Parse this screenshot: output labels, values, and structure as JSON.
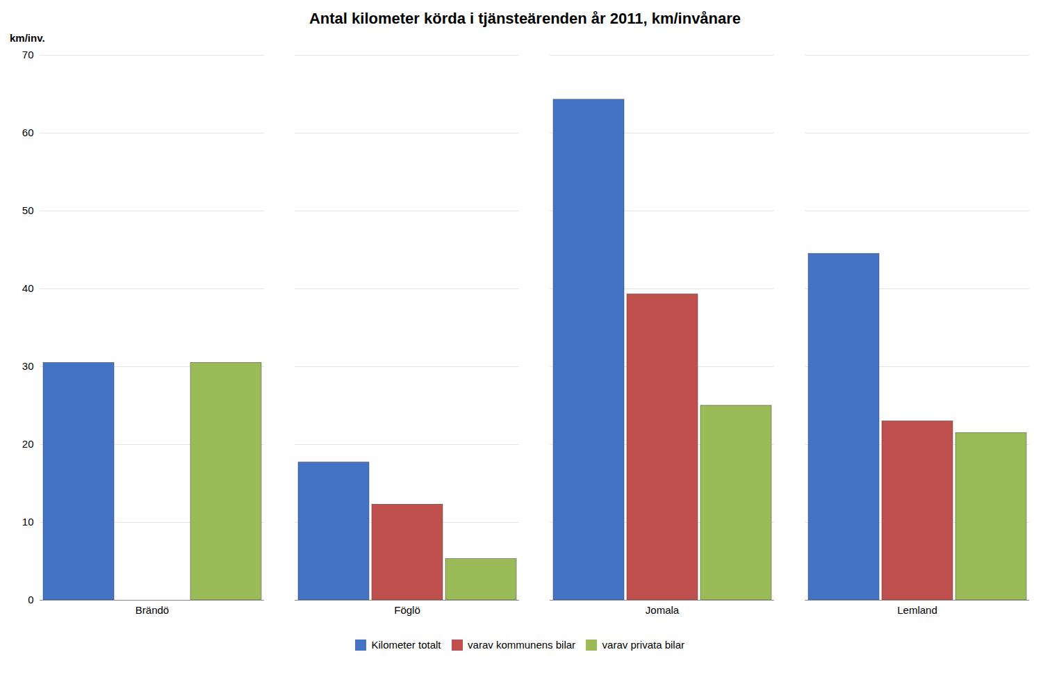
{
  "chart_data": {
    "type": "bar",
    "title": "Antal kilometer körda i tjänsteärenden år 2011, km/invånare",
    "ylabel": "km/inv.",
    "categories": [
      "Brändö",
      "Föglö",
      "Jomala",
      "Lemland"
    ],
    "series": [
      {
        "name": "Kilometer totalt",
        "color": "#4472C4",
        "values": [
          30.5,
          17.7,
          64.3,
          44.5
        ]
      },
      {
        "name": "varav kommunens bilar",
        "color": "#C0504D",
        "values": [
          null,
          12.3,
          39.3,
          23.0
        ]
      },
      {
        "name": "varav privata bilar",
        "color": "#9BBB59",
        "values": [
          30.5,
          5.3,
          25.0,
          21.5
        ]
      }
    ],
    "ylim": [
      0,
      70
    ],
    "yticks": [
      0,
      10,
      20,
      30,
      40,
      50,
      60,
      70
    ],
    "grid": true,
    "legend": "bottom"
  }
}
